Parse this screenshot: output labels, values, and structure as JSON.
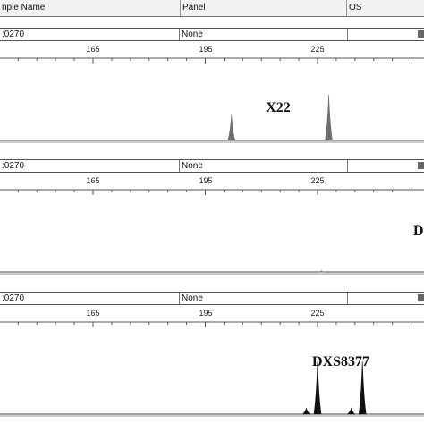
{
  "header": {
    "sample_name_label": "nple Name",
    "panel_label": "Panel",
    "os_label": "OS"
  },
  "panels": [
    {
      "sample": ":0270",
      "panel": "None",
      "ticks": [
        "165",
        "195",
        "225"
      ],
      "locus": "X22",
      "peaks": [
        {
          "size": 202,
          "height": 0.4,
          "color": "#6e6e6e"
        },
        {
          "size": 228,
          "height": 0.72,
          "color": "#6e6e6e"
        }
      ]
    },
    {
      "sample": ":0270",
      "panel": "None",
      "ticks": [
        "165",
        "195",
        "225"
      ],
      "locus": "D",
      "peaks": [
        {
          "size": 226,
          "height": 0.02,
          "color": "#888888"
        }
      ]
    },
    {
      "sample": ":0270",
      "panel": "None",
      "ticks": [
        "165",
        "195",
        "225"
      ],
      "locus": "DXS8377",
      "peaks": [
        {
          "size": 222,
          "height": 0.08,
          "color": "#111111"
        },
        {
          "size": 225,
          "height": 0.72,
          "color": "#111111"
        },
        {
          "size": 234,
          "height": 0.08,
          "color": "#111111"
        },
        {
          "size": 237,
          "height": 0.72,
          "color": "#111111"
        }
      ]
    }
  ],
  "colors": {
    "header_bg": "#f2f2f2",
    "trace_fill": "#6e6e6e",
    "trace_dark": "#111111"
  }
}
